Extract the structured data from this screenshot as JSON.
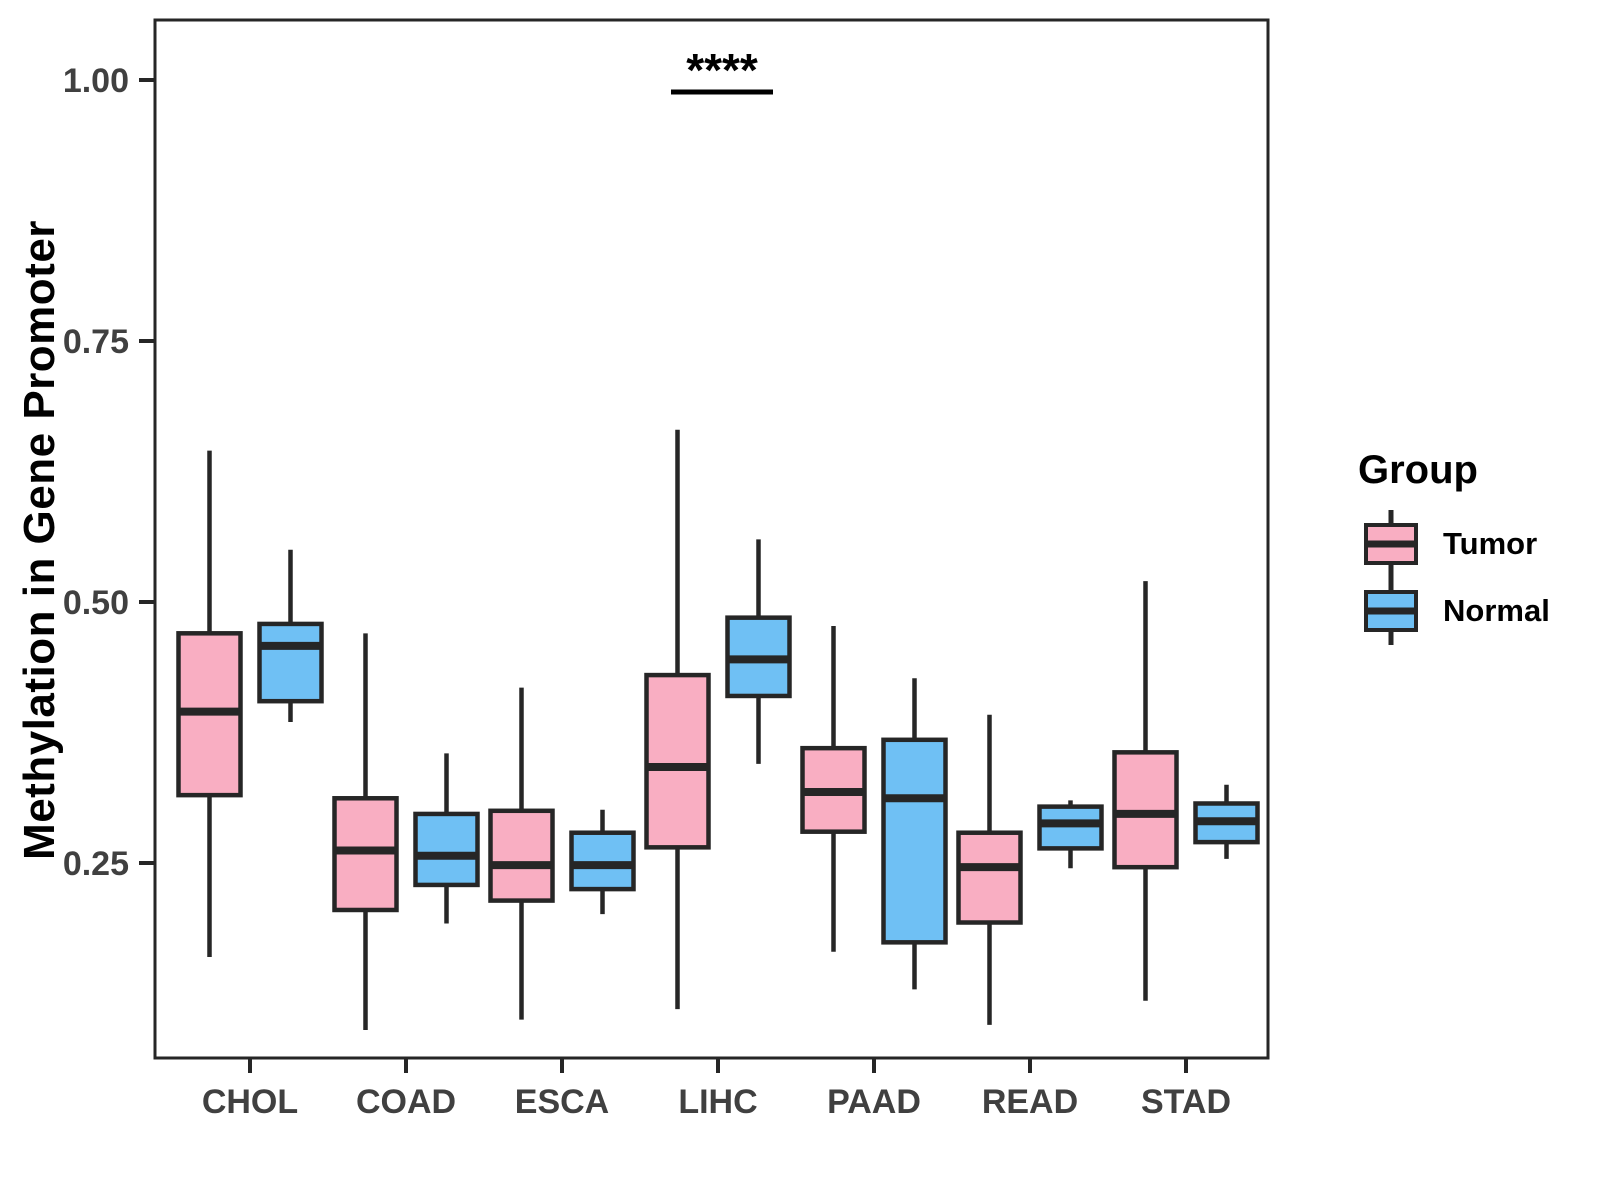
{
  "chart_data": {
    "type": "boxplot",
    "title": "",
    "ylabel": "Methylation in Gene Promoter",
    "xlabel": "",
    "legend_title": "Group",
    "categories": [
      "CHOL",
      "COAD",
      "ESCA",
      "LIHC",
      "PAAD",
      "READ",
      "STAD"
    ],
    "groups": [
      "Tumor",
      "Normal"
    ],
    "ylim": [
      0.063,
      1.057
    ],
    "yticks": [
      0.25,
      0.5,
      0.75,
      1.0
    ],
    "ytick_labels": [
      "0.25",
      "0.50",
      "0.75",
      "1.00"
    ],
    "grid": false,
    "legend_position": "right",
    "colors": {
      "tumor_fill": "#F9AEC2",
      "normal_fill": "#6FC0F4",
      "stroke": "#262626",
      "tick_text": "#404040",
      "title_text": "#000000"
    },
    "annotation": {
      "text": "****",
      "category": "LIHC",
      "note": "significance bracket between LIHC Tumor and Normal"
    },
    "series": [
      {
        "name": "Tumor",
        "color": "#F9AEC2",
        "boxes": [
          {
            "category": "CHOL",
            "whisker_low": 0.16,
            "q1": 0.315,
            "median": 0.395,
            "q3": 0.47,
            "whisker_high": 0.645
          },
          {
            "category": "COAD",
            "whisker_low": 0.09,
            "q1": 0.205,
            "median": 0.262,
            "q3": 0.312,
            "whisker_high": 0.47
          },
          {
            "category": "ESCA",
            "whisker_low": 0.1,
            "q1": 0.214,
            "median": 0.248,
            "q3": 0.3,
            "whisker_high": 0.418
          },
          {
            "category": "LIHC",
            "whisker_low": 0.11,
            "q1": 0.265,
            "median": 0.342,
            "q3": 0.43,
            "whisker_high": 0.665
          },
          {
            "category": "PAAD",
            "whisker_low": 0.165,
            "q1": 0.28,
            "median": 0.318,
            "q3": 0.36,
            "whisker_high": 0.477
          },
          {
            "category": "READ",
            "whisker_low": 0.095,
            "q1": 0.193,
            "median": 0.246,
            "q3": 0.279,
            "whisker_high": 0.392
          },
          {
            "category": "STAD",
            "whisker_low": 0.118,
            "q1": 0.246,
            "median": 0.297,
            "q3": 0.356,
            "whisker_high": 0.52
          }
        ]
      },
      {
        "name": "Normal",
        "color": "#6FC0F4",
        "boxes": [
          {
            "category": "CHOL",
            "whisker_low": 0.385,
            "q1": 0.405,
            "median": 0.458,
            "q3": 0.479,
            "whisker_high": 0.55
          },
          {
            "category": "COAD",
            "whisker_low": 0.192,
            "q1": 0.229,
            "median": 0.257,
            "q3": 0.297,
            "whisker_high": 0.355
          },
          {
            "category": "ESCA",
            "whisker_low": 0.201,
            "q1": 0.225,
            "median": 0.248,
            "q3": 0.279,
            "whisker_high": 0.301
          },
          {
            "category": "LIHC",
            "whisker_low": 0.345,
            "q1": 0.41,
            "median": 0.445,
            "q3": 0.485,
            "whisker_high": 0.56
          },
          {
            "category": "PAAD",
            "whisker_low": 0.129,
            "q1": 0.174,
            "median": 0.312,
            "q3": 0.368,
            "whisker_high": 0.427
          },
          {
            "category": "READ",
            "whisker_low": 0.245,
            "q1": 0.264,
            "median": 0.288,
            "q3": 0.304,
            "whisker_high": 0.31
          },
          {
            "category": "STAD",
            "whisker_low": 0.254,
            "q1": 0.27,
            "median": 0.29,
            "q3": 0.307,
            "whisker_high": 0.325
          }
        ]
      }
    ]
  }
}
